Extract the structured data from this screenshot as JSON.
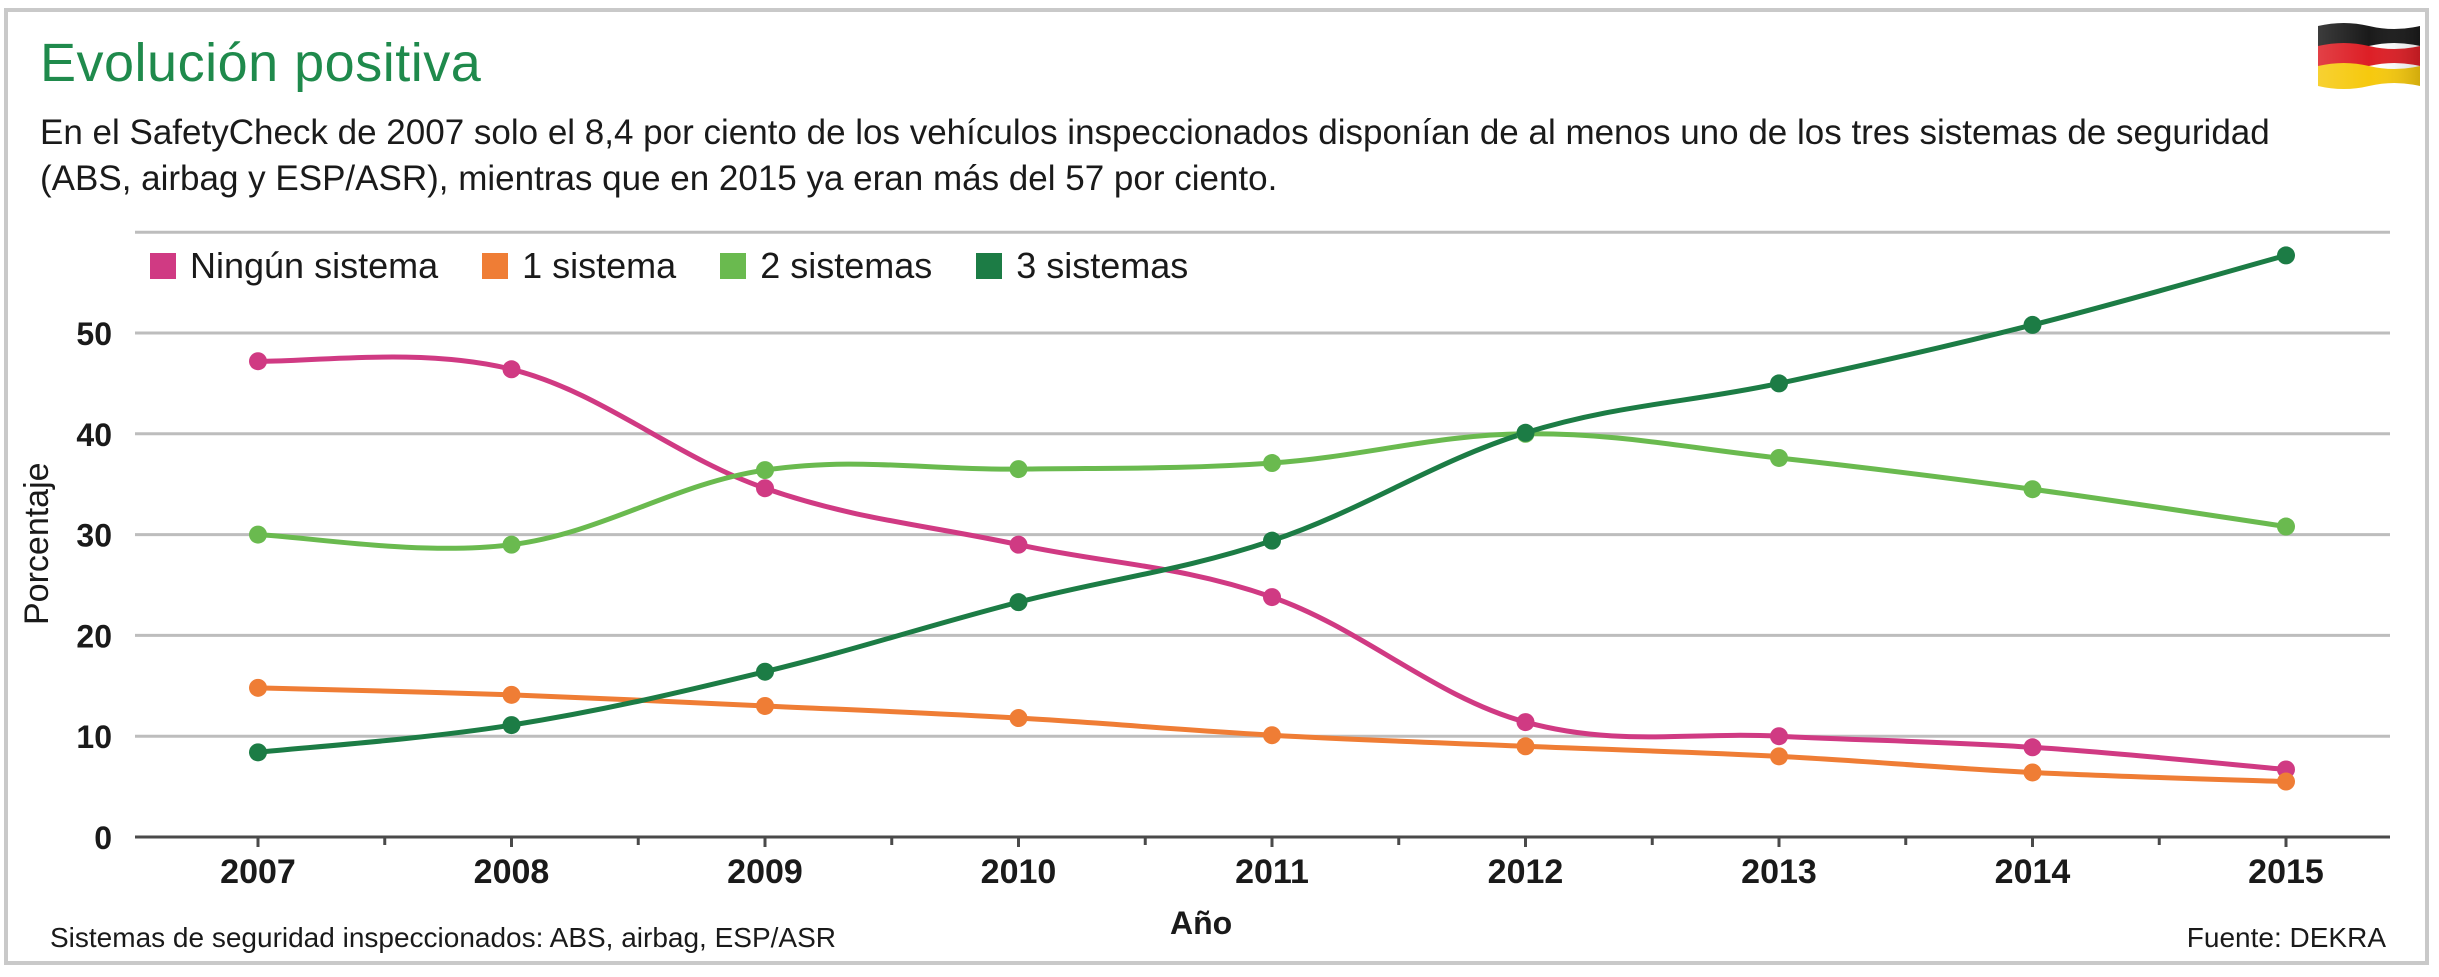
{
  "title": "Evolución positiva",
  "subtitle": "En el SafetyCheck de 2007 solo el 8,4 por ciento de los vehículos inspeccionados disponían de al menos uno de los tres sistemas de seguridad (ABS, airbag y ESP/ASR), mientras que en 2015 ya eran más del 57 por ciento.",
  "flag_icon": "germany-flag-icon",
  "footnote": "Sistemas de seguridad inspeccionados: ABS, airbag, ESP/ASR",
  "source": "Fuente: DEKRA",
  "chart_data": {
    "type": "line",
    "title": "Evolución positiva",
    "xlabel": "Año",
    "ylabel": "Porcentaje",
    "x": [
      "2007",
      "2008",
      "2009",
      "2010",
      "2011",
      "2012",
      "2013",
      "2014",
      "2015"
    ],
    "ylim": [
      0,
      60
    ],
    "yticks": [
      0,
      10,
      20,
      30,
      40,
      50
    ],
    "grid": true,
    "legend_position": "top-left",
    "series": [
      {
        "name": "Ningún sistema",
        "color": "#d03a83",
        "values": [
          47.2,
          46.4,
          34.6,
          29.0,
          23.8,
          11.4,
          10.0,
          8.9,
          6.7
        ]
      },
      {
        "name": "1 sistema",
        "color": "#ef7d35",
        "values": [
          14.8,
          14.1,
          13.0,
          11.8,
          10.1,
          9.0,
          8.0,
          6.4,
          5.5
        ]
      },
      {
        "name": "2 sistemas",
        "color": "#6aba4f",
        "values": [
          30.0,
          29.0,
          36.4,
          36.5,
          37.1,
          40.0,
          37.6,
          34.5,
          30.8
        ]
      },
      {
        "name": "3 sistemas",
        "color": "#1c7c45",
        "values": [
          8.4,
          11.1,
          16.4,
          23.3,
          29.4,
          40.1,
          45.0,
          50.8,
          57.7
        ]
      }
    ]
  }
}
